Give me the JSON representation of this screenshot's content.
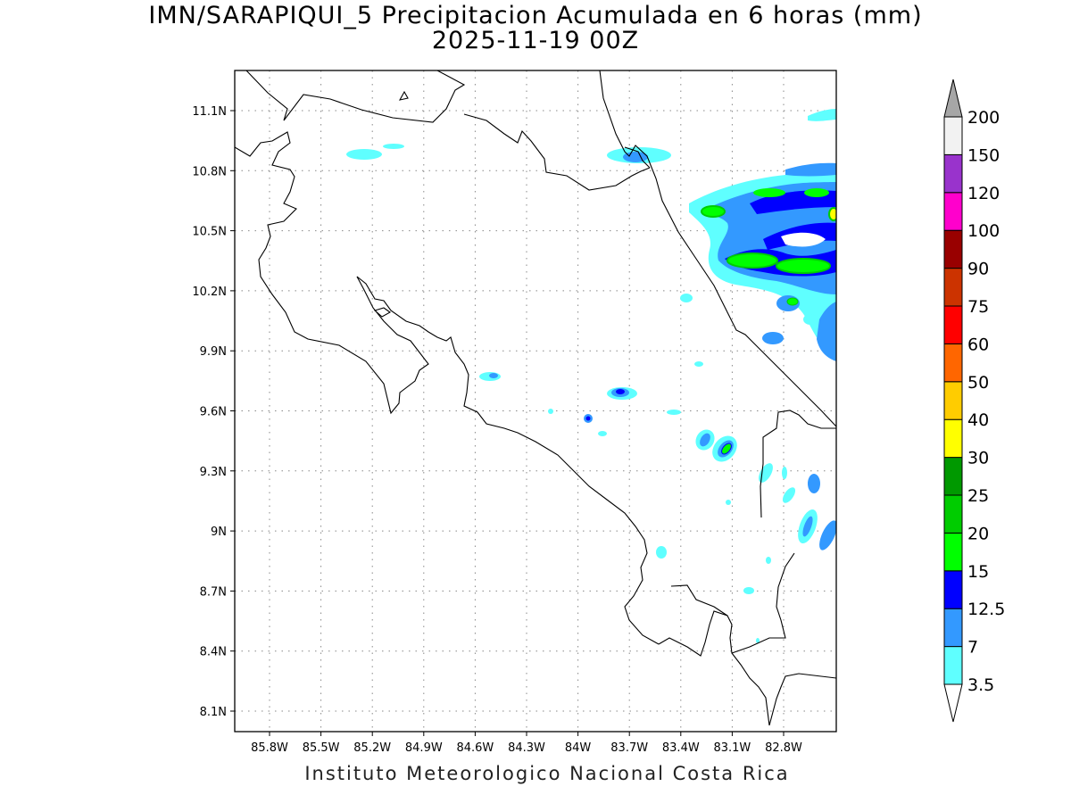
{
  "title": "IMN/SARAPIQUI_5 Precipitacion Acumulada en 6 horas (mm)",
  "subtitle": "2025-11-19 00Z",
  "credit": "Instituto Meteorologico Nacional Costa Rica",
  "map": {
    "lon_labels": [
      "85.8W",
      "85.5W",
      "85.2W",
      "84.9W",
      "84.6W",
      "84.3W",
      "84W",
      "83.7W",
      "83.4W",
      "83.1W",
      "82.8W"
    ],
    "lat_labels": [
      "11.1N",
      "10.8N",
      "10.5N",
      "10.2N",
      "9.9N",
      "9.6N",
      "9.3N",
      "9N",
      "8.7N",
      "8.4N",
      "8.1N"
    ],
    "grid": true
  },
  "colorbar": {
    "labels": [
      "3.5",
      "7",
      "12.5",
      "15",
      "20",
      "25",
      "30",
      "40",
      "50",
      "60",
      "75",
      "90",
      "100",
      "120",
      "150",
      "200"
    ],
    "colors": [
      "#ffffff",
      "#5fffff",
      "#3399ff",
      "#0000ff",
      "#00ff00",
      "#00cc00",
      "#009900",
      "#ffff00",
      "#ffcc00",
      "#ff6600",
      "#ff0000",
      "#cc3300",
      "#990000",
      "#ff00cc",
      "#9933cc",
      "#f2f2f2",
      "#a6a6a6"
    ]
  }
}
